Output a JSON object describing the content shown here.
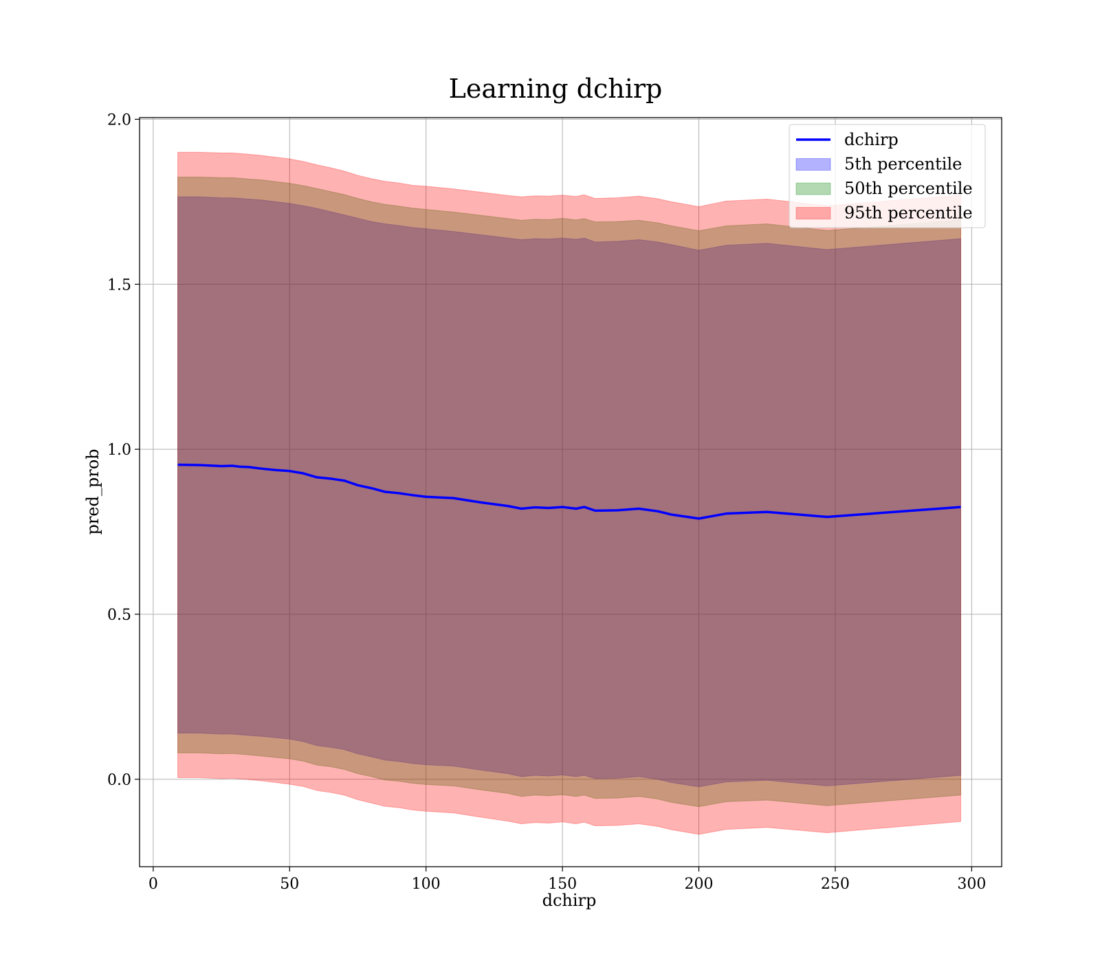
{
  "chart_data": {
    "type": "area",
    "title": "Learning dchirp",
    "xlabel": "dchirp",
    "ylabel": "pred_prob",
    "xlim": [
      -5,
      311
    ],
    "ylim": [
      -0.265,
      2.005
    ],
    "xticks": [
      0,
      50,
      100,
      150,
      200,
      250,
      300
    ],
    "yticks": [
      0.0,
      0.5,
      1.0,
      1.5,
      2.0
    ],
    "xtick_labels": [
      "0",
      "50",
      "100",
      "150",
      "200",
      "250",
      "300"
    ],
    "ytick_labels": [
      "0.0",
      "0.5",
      "1.0",
      "1.5",
      "2.0"
    ],
    "grid": true,
    "legend_position": "top-right",
    "x": [
      9,
      17,
      25,
      29,
      32,
      35,
      40,
      45,
      50,
      55,
      60,
      65,
      70,
      75,
      80,
      85,
      90,
      95,
      100,
      110,
      120,
      130,
      135,
      140,
      145,
      150,
      155,
      158,
      162,
      170,
      178,
      185,
      190,
      200,
      210,
      225,
      247,
      296
    ],
    "series": [
      {
        "name": "dchirp",
        "kind": "line",
        "color": "#0000ff",
        "values": [
          0.953,
          0.952,
          0.949,
          0.95,
          0.947,
          0.946,
          0.941,
          0.937,
          0.934,
          0.927,
          0.915,
          0.911,
          0.905,
          0.891,
          0.882,
          0.871,
          0.867,
          0.861,
          0.856,
          0.852,
          0.839,
          0.828,
          0.82,
          0.824,
          0.822,
          0.825,
          0.82,
          0.825,
          0.814,
          0.815,
          0.82,
          0.812,
          0.802,
          0.79,
          0.805,
          0.81,
          0.795,
          0.825
        ]
      },
      {
        "name": "5th percentile",
        "kind": "band",
        "color": "#0000ff",
        "upper": [
          1.765,
          1.765,
          1.762,
          1.762,
          1.76,
          1.758,
          1.755,
          1.75,
          1.745,
          1.738,
          1.73,
          1.72,
          1.71,
          1.7,
          1.69,
          1.683,
          1.678,
          1.672,
          1.668,
          1.66,
          1.65,
          1.64,
          1.635,
          1.638,
          1.637,
          1.64,
          1.636,
          1.64,
          1.628,
          1.63,
          1.635,
          1.628,
          1.62,
          1.603,
          1.618,
          1.624,
          1.605,
          1.638
        ],
        "lower": [
          0.14,
          0.14,
          0.137,
          0.137,
          0.135,
          0.133,
          0.13,
          0.126,
          0.122,
          0.114,
          0.102,
          0.097,
          0.09,
          0.077,
          0.068,
          0.058,
          0.054,
          0.048,
          0.044,
          0.04,
          0.028,
          0.017,
          0.008,
          0.012,
          0.01,
          0.013,
          0.008,
          0.012,
          0.002,
          0.003,
          0.008,
          0.0,
          -0.01,
          -0.023,
          -0.008,
          -0.003,
          -0.02,
          0.012
        ]
      },
      {
        "name": "50th percentile",
        "kind": "band",
        "color": "#008000",
        "upper": [
          1.825,
          1.825,
          1.823,
          1.823,
          1.821,
          1.819,
          1.816,
          1.811,
          1.806,
          1.799,
          1.79,
          1.781,
          1.772,
          1.76,
          1.75,
          1.742,
          1.737,
          1.731,
          1.727,
          1.719,
          1.709,
          1.699,
          1.694,
          1.697,
          1.696,
          1.7,
          1.695,
          1.699,
          1.689,
          1.69,
          1.694,
          1.686,
          1.677,
          1.662,
          1.677,
          1.683,
          1.663,
          1.695
        ],
        "lower": [
          0.08,
          0.08,
          0.077,
          0.078,
          0.076,
          0.074,
          0.07,
          0.066,
          0.062,
          0.055,
          0.043,
          0.038,
          0.03,
          0.017,
          0.008,
          -0.002,
          -0.006,
          -0.012,
          -0.016,
          -0.02,
          -0.032,
          -0.043,
          -0.052,
          -0.048,
          -0.05,
          -0.047,
          -0.052,
          -0.048,
          -0.058,
          -0.057,
          -0.052,
          -0.06,
          -0.07,
          -0.083,
          -0.068,
          -0.063,
          -0.08,
          -0.048
        ]
      },
      {
        "name": "95th percentile",
        "kind": "band",
        "color": "#ff0000",
        "upper": [
          1.9,
          1.9,
          1.898,
          1.898,
          1.896,
          1.894,
          1.89,
          1.885,
          1.88,
          1.872,
          1.862,
          1.853,
          1.843,
          1.83,
          1.82,
          1.812,
          1.807,
          1.8,
          1.797,
          1.789,
          1.779,
          1.769,
          1.765,
          1.768,
          1.767,
          1.77,
          1.766,
          1.771,
          1.76,
          1.762,
          1.767,
          1.759,
          1.75,
          1.735,
          1.752,
          1.758,
          1.738,
          1.77
        ],
        "lower": [
          0.005,
          0.005,
          0.002,
          0.003,
          0.001,
          -0.001,
          -0.005,
          -0.01,
          -0.015,
          -0.022,
          -0.034,
          -0.04,
          -0.048,
          -0.062,
          -0.072,
          -0.082,
          -0.086,
          -0.093,
          -0.097,
          -0.102,
          -0.115,
          -0.127,
          -0.135,
          -0.131,
          -0.133,
          -0.129,
          -0.135,
          -0.13,
          -0.141,
          -0.14,
          -0.135,
          -0.143,
          -0.153,
          -0.167,
          -0.152,
          -0.146,
          -0.162,
          -0.128
        ]
      }
    ]
  }
}
